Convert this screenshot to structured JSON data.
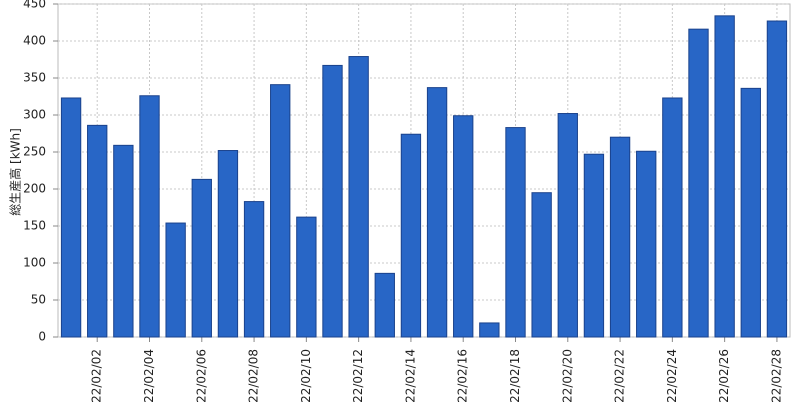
{
  "chart_data": {
    "type": "bar",
    "y_label": "総生産高 [kWh]",
    "categories": [
      null,
      "22/02/02",
      null,
      "22/02/04",
      null,
      "22/02/06",
      null,
      "22/02/08",
      null,
      "22/02/10",
      null,
      "22/02/12",
      null,
      "22/02/14",
      null,
      "22/02/16",
      null,
      "22/02/18",
      null,
      "22/02/20",
      null,
      "22/02/22",
      null,
      "22/02/24",
      null,
      "22/02/26",
      null,
      "22/02/28"
    ],
    "values": [
      323,
      286,
      259,
      326,
      154,
      213,
      252,
      183,
      341,
      162,
      367,
      379,
      86,
      274,
      337,
      299,
      19,
      283,
      195,
      302,
      247,
      270,
      251,
      323,
      416,
      434,
      336,
      427
    ],
    "color": "#2866c6",
    "ylim": [
      0,
      450
    ],
    "yticks": [
      0,
      50,
      100,
      150,
      200,
      250,
      300,
      350,
      400,
      450
    ],
    "grid": true
  }
}
